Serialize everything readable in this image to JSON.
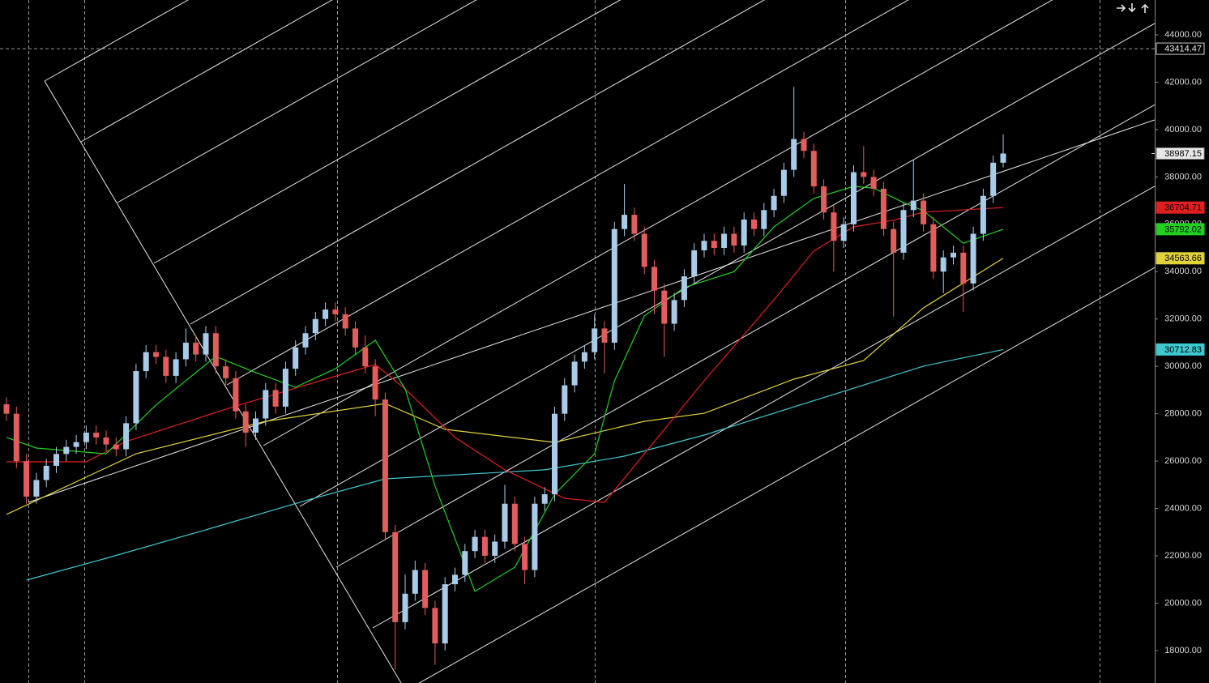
{
  "chart_data": {
    "type": "candlestick",
    "ylim": [
      16630,
      45470
    ],
    "yticks": [
      {
        "value": 18000,
        "label": "18000.00"
      },
      {
        "value": 20000,
        "label": "20000.00"
      },
      {
        "value": 22000,
        "label": "22000.00"
      },
      {
        "value": 24000,
        "label": "24000.00"
      },
      {
        "value": 26000,
        "label": "26000.00"
      },
      {
        "value": 28000,
        "label": "28000.00"
      },
      {
        "value": 30000,
        "label": "30000.00"
      },
      {
        "value": 32000,
        "label": "32000.00"
      },
      {
        "value": 34000,
        "label": "34000.00"
      },
      {
        "value": 36000,
        "label": "36000.00"
      },
      {
        "value": 38000,
        "label": "38000.00"
      },
      {
        "value": 40000,
        "label": "40000.00"
      },
      {
        "value": 42000,
        "label": "42000.00"
      },
      {
        "value": 44000,
        "label": "44000.00"
      }
    ],
    "up_color": "#a9cbea",
    "down_color": "#e35d5d",
    "open": [
      28400,
      28000,
      26000,
      24500,
      25200,
      25800,
      26300,
      26600,
      26800,
      27200,
      27000,
      26700,
      26500,
      27600,
      29800,
      30600,
      30400,
      29600,
      30300,
      31000,
      30500,
      31400,
      30000,
      29500,
      28100,
      27200,
      27800,
      29000,
      28300,
      29900,
      30800,
      31400,
      32000,
      32400,
      32200,
      31600,
      30800,
      30000,
      28600,
      23000,
      19200,
      20400,
      21400,
      19800,
      18300,
      20800,
      21200,
      22200,
      22800,
      22000,
      22600,
      24200,
      22500,
      21400,
      24200,
      24600,
      28000,
      29200,
      30200,
      30600,
      31600,
      31000,
      35800,
      36400,
      35600,
      34200,
      33200,
      31800,
      32800,
      33800,
      34900,
      35300,
      35000,
      35600,
      35100,
      36200,
      35800,
      36600,
      37200,
      38300,
      39600,
      39100,
      37600,
      36500,
      35300,
      36000,
      38200,
      38000,
      37500,
      35800,
      34800,
      36600,
      37000,
      36000,
      34000,
      34600,
      34800,
      33500,
      35600,
      37200,
      38600
    ],
    "high": [
      28700,
      28300,
      26300,
      25500,
      26100,
      26600,
      26900,
      27100,
      27500,
      27500,
      27300,
      27000,
      27900,
      30100,
      30900,
      30900,
      30700,
      30600,
      31600,
      31300,
      31700,
      31700,
      30300,
      29800,
      28400,
      28100,
      29300,
      29300,
      30200,
      31100,
      31700,
      32300,
      32700,
      32700,
      32500,
      31900,
      31300,
      30300,
      28900,
      23300,
      21200,
      21800,
      21700,
      20100,
      21100,
      21500,
      22500,
      23100,
      23100,
      22900,
      25000,
      24500,
      22800,
      24500,
      24900,
      28300,
      29500,
      30500,
      30900,
      32200,
      31900,
      36100,
      37700,
      36700,
      35900,
      34500,
      33500,
      33100,
      34100,
      35200,
      35600,
      35600,
      35900,
      35900,
      36500,
      36500,
      36900,
      37500,
      38600,
      41800,
      39900,
      39400,
      37900,
      36800,
      36300,
      38500,
      39300,
      38300,
      37800,
      36100,
      36900,
      38700,
      37300,
      36300,
      34900,
      35100,
      35100,
      35900,
      37500,
      38900,
      39800
    ],
    "low": [
      27700,
      25700,
      24200,
      24200,
      24900,
      25500,
      26000,
      26300,
      26500,
      26700,
      26400,
      26200,
      26200,
      27300,
      29500,
      30100,
      29300,
      29300,
      30000,
      30200,
      30200,
      29700,
      29200,
      27800,
      26600,
      26900,
      27500,
      28000,
      28000,
      29600,
      30500,
      31100,
      31700,
      31900,
      31300,
      30500,
      29700,
      27900,
      22700,
      17200,
      18900,
      20100,
      19500,
      17400,
      18000,
      20500,
      20900,
      21900,
      21700,
      21700,
      22300,
      22200,
      20800,
      21100,
      23900,
      24300,
      27700,
      28900,
      29900,
      30300,
      29700,
      30700,
      35500,
      35300,
      33900,
      32200,
      30400,
      31500,
      32500,
      33500,
      34600,
      34700,
      34700,
      34800,
      34800,
      35500,
      35500,
      36300,
      36900,
      38000,
      38800,
      37300,
      36200,
      34000,
      35000,
      35700,
      37700,
      37200,
      35500,
      32100,
      34500,
      36300,
      35700,
      33700,
      33100,
      34300,
      32300,
      33200,
      35300,
      36900,
      38400
    ],
    "close": [
      28000,
      26000,
      24500,
      25200,
      25800,
      26300,
      26600,
      26800,
      27200,
      27000,
      26700,
      26500,
      27600,
      29800,
      30600,
      30400,
      29600,
      30300,
      31000,
      30500,
      31400,
      30000,
      29500,
      28100,
      27200,
      27800,
      29000,
      28300,
      29900,
      30800,
      31400,
      32000,
      32400,
      32200,
      31600,
      30800,
      30000,
      28600,
      23000,
      19200,
      20400,
      21400,
      19800,
      18300,
      20800,
      21200,
      22200,
      22800,
      22000,
      22600,
      24200,
      22500,
      21400,
      24200,
      24600,
      28000,
      29200,
      30200,
      30600,
      31600,
      31000,
      35800,
      36400,
      35600,
      34200,
      33200,
      31800,
      32800,
      33800,
      34900,
      35300,
      35000,
      35600,
      35100,
      36200,
      35800,
      36600,
      37200,
      38300,
      39600,
      39100,
      37600,
      36500,
      35300,
      36000,
      38200,
      38000,
      37500,
      35800,
      34800,
      36600,
      37000,
      36000,
      34000,
      34600,
      34800,
      33500,
      35600,
      37200,
      38600,
      38987.15
    ],
    "last_tag_color": "#e8e8e8",
    "overlays": [
      {
        "color": "#3fc8d0",
        "x": [
          2,
          10,
          20,
          30,
          38,
          54,
          62,
          70,
          84,
          92,
          100
        ],
        "values": [
          20975,
          21900,
          23100,
          24330,
          25250,
          25630,
          26210,
          27100,
          28950,
          30010,
          30712.83
        ]
      },
      {
        "color": "#e0d23a",
        "x": [
          0,
          13,
          26,
          38,
          44,
          55,
          64,
          70,
          79,
          86,
          92,
          100
        ],
        "values": [
          23750,
          26310,
          27680,
          28430,
          27340,
          26790,
          27680,
          28020,
          29460,
          30250,
          32470,
          34563.66
        ]
      },
      {
        "color": "#e02020",
        "x": [
          0,
          8,
          12,
          22,
          32,
          37,
          40,
          45,
          50,
          56,
          60,
          64,
          70,
          77,
          81,
          85,
          89,
          92,
          100
        ],
        "values": [
          25970,
          25970,
          26830,
          28190,
          29460,
          30080,
          29050,
          27000,
          25630,
          24430,
          24260,
          26310,
          29390,
          32810,
          34870,
          35890,
          36170,
          36510,
          36704.71
        ]
      },
      {
        "color": "#22d022",
        "x": [
          0,
          3,
          10,
          15,
          21,
          25,
          29,
          33,
          37,
          40,
          43,
          47,
          51,
          55,
          59,
          61,
          64,
          68,
          73,
          77,
          81,
          85,
          87,
          90,
          92,
          96,
          100
        ],
        "values": [
          27000,
          26550,
          26310,
          28370,
          30420,
          29740,
          29120,
          29900,
          31100,
          29050,
          24950,
          20500,
          21520,
          24600,
          26310,
          29390,
          32130,
          33330,
          34000,
          35890,
          37090,
          37600,
          37530,
          36920,
          36570,
          35200,
          35792.02
        ]
      }
    ],
    "crosshair_y": 43414.47
  }
}
